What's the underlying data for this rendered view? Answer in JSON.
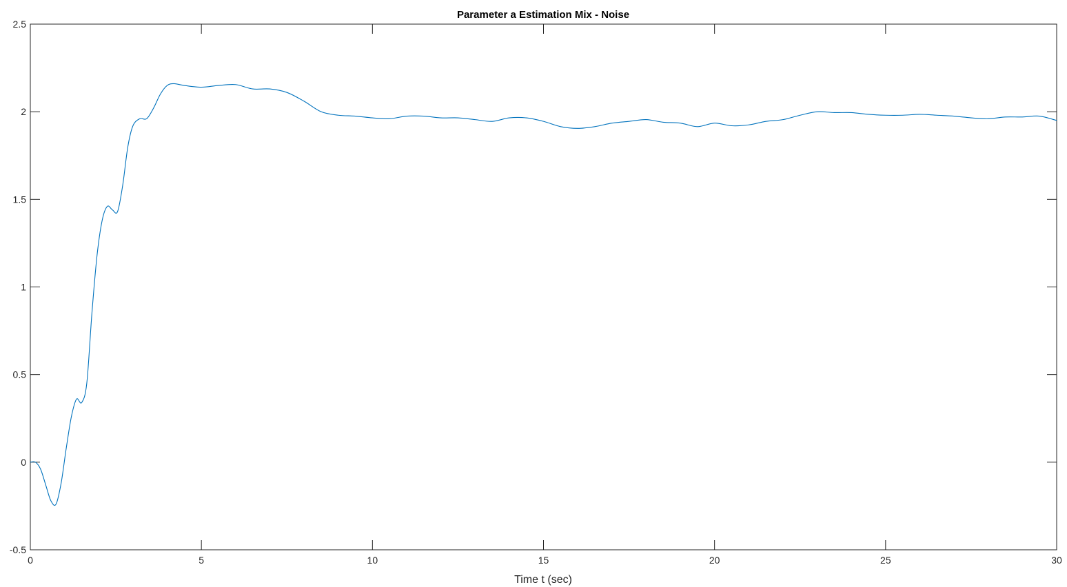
{
  "chart_data": {
    "type": "line",
    "title": "Parameter a Estimation Mix - Noise",
    "xlabel": "Time t (sec)",
    "ylabel": "",
    "xlim": [
      0,
      30
    ],
    "ylim": [
      -0.5,
      2.5
    ],
    "xticks": [
      0,
      5,
      10,
      15,
      20,
      25,
      30
    ],
    "xtick_labels": [
      "0",
      "5",
      "10",
      "15",
      "20",
      "25",
      "30"
    ],
    "yticks": [
      -0.5,
      0,
      0.5,
      1,
      1.5,
      2,
      2.5
    ],
    "ytick_labels": [
      "-0.5",
      "0",
      "0.5",
      "1",
      "1.5",
      "2",
      "2.5"
    ],
    "grid": false,
    "line_color": "#0072BD",
    "series": [
      {
        "x": [
          0,
          0.15,
          0.3,
          0.45,
          0.6,
          0.75,
          0.9,
          1.05,
          1.2,
          1.35,
          1.5,
          1.65,
          1.8,
          1.95,
          2.1,
          2.25,
          2.4,
          2.55,
          2.7,
          2.85,
          3.0,
          3.2,
          3.4,
          3.6,
          3.8,
          4.0,
          4.2,
          4.5,
          5.0,
          5.5,
          6.0,
          6.5,
          7.0,
          7.5,
          8.0,
          8.5,
          9.0,
          9.5,
          10.0,
          10.5,
          11.0,
          11.5,
          12.0,
          12.5,
          13.0,
          13.5,
          14.0,
          14.5,
          15.0,
          15.5,
          16.0,
          16.5,
          17.0,
          17.5,
          18.0,
          18.5,
          19.0,
          19.5,
          20.0,
          20.5,
          21.0,
          21.5,
          22.0,
          22.5,
          23.0,
          23.5,
          24.0,
          24.5,
          25.0,
          25.5,
          26.0,
          26.5,
          27.0,
          27.5,
          28.0,
          28.5,
          29.0,
          29.5,
          30.0
        ],
        "y": [
          0,
          0,
          -0.04,
          -0.13,
          -0.22,
          -0.24,
          -0.12,
          0.08,
          0.26,
          0.36,
          0.34,
          0.45,
          0.85,
          1.18,
          1.38,
          1.46,
          1.44,
          1.43,
          1.58,
          1.8,
          1.92,
          1.96,
          1.96,
          2.02,
          2.1,
          2.15,
          2.16,
          2.15,
          2.14,
          2.15,
          2.155,
          2.13,
          2.13,
          2.11,
          2.06,
          2.0,
          1.98,
          1.975,
          1.965,
          1.96,
          1.975,
          1.975,
          1.965,
          1.965,
          1.955,
          1.945,
          1.965,
          1.965,
          1.945,
          1.915,
          1.905,
          1.915,
          1.935,
          1.945,
          1.955,
          1.94,
          1.935,
          1.915,
          1.935,
          1.92,
          1.925,
          1.945,
          1.955,
          1.98,
          2.0,
          1.995,
          1.995,
          1.985,
          1.98,
          1.98,
          1.985,
          1.98,
          1.975,
          1.965,
          1.96,
          1.97,
          1.97,
          1.975,
          1.95
        ]
      }
    ]
  }
}
